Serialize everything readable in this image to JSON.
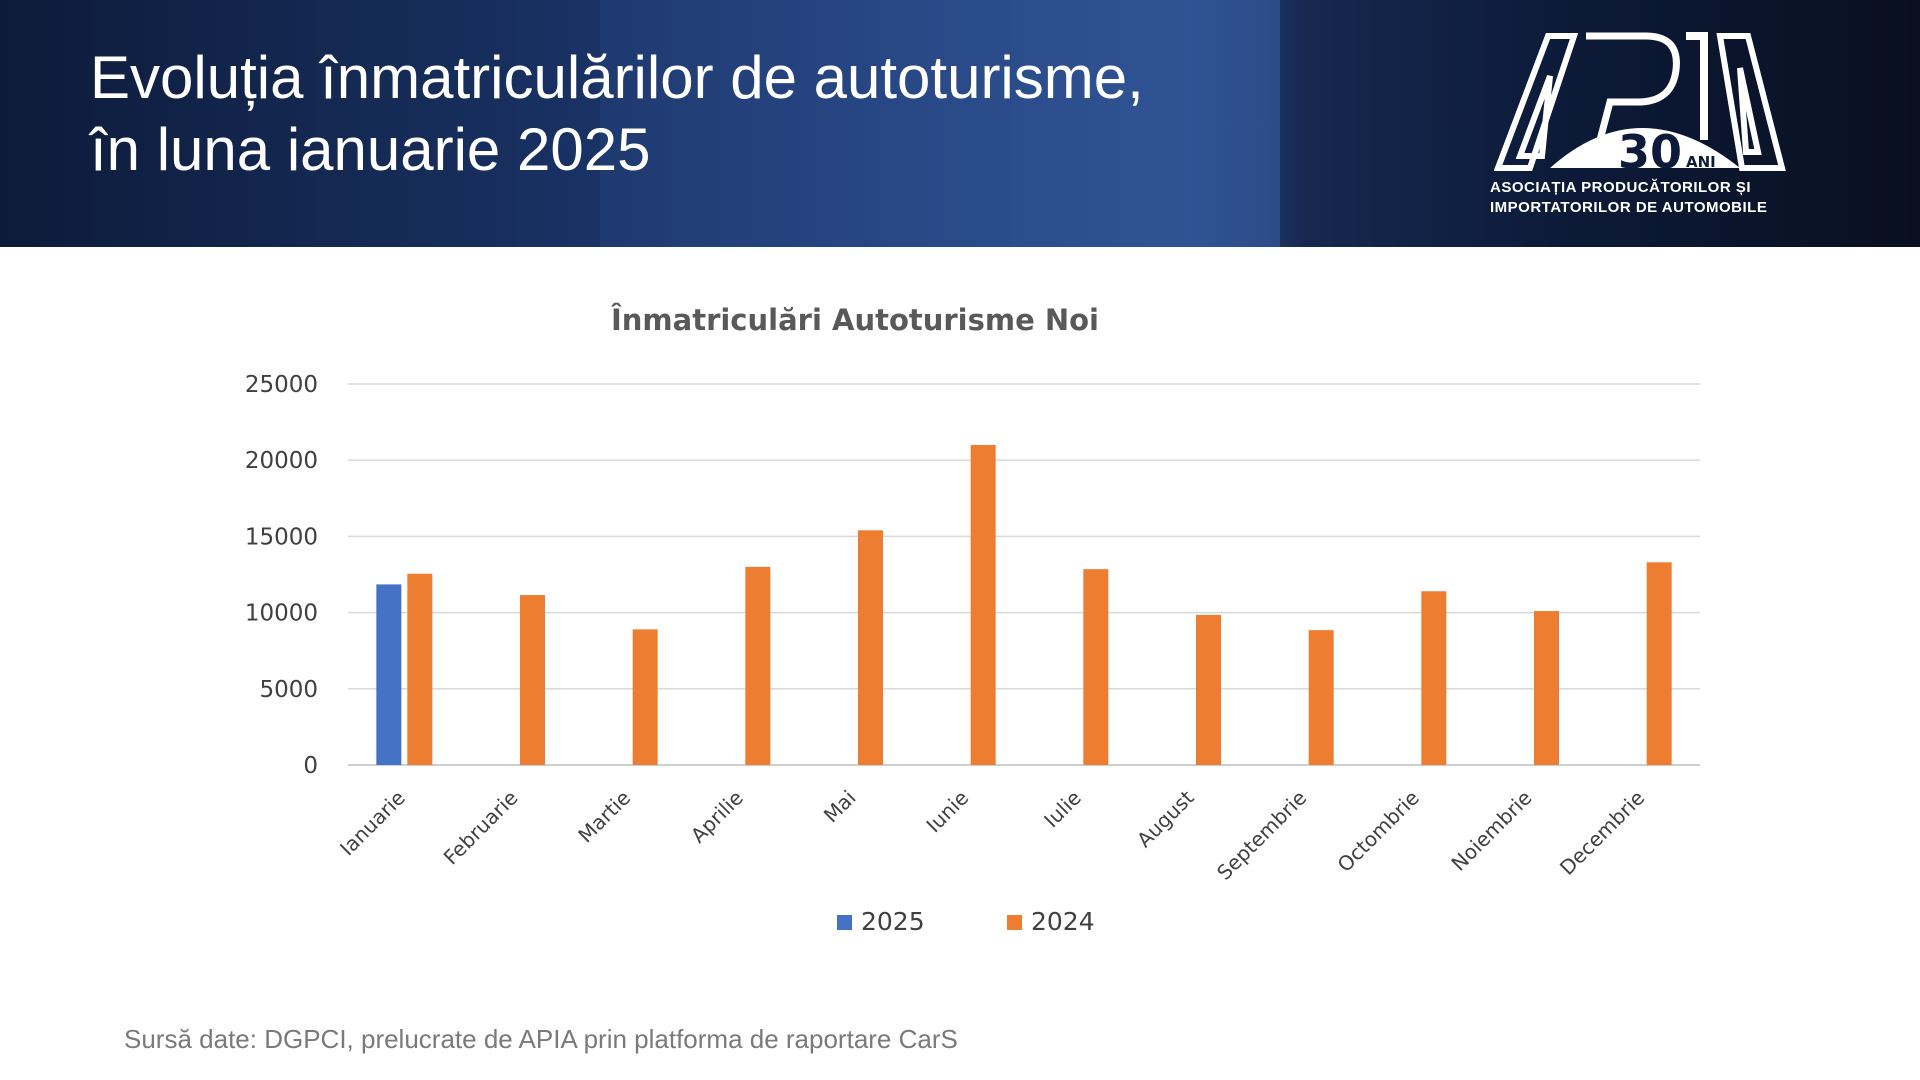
{
  "header": {
    "title_line1": "Evoluția înmatriculărilor de autoturisme,",
    "title_line2": "în luna ianuarie 2025"
  },
  "logo": {
    "wordmark": "APIA",
    "anniversary_number": "30",
    "anniversary_unit": "ANI",
    "subtitle_line1": "ASOCIAȚIA PRODUCĂTORILOR ȘI",
    "subtitle_line2": "IMPORTATORILOR DE AUTOMOBILE"
  },
  "chart_data": {
    "type": "bar",
    "title": "Înmatriculări Autoturisme Noi",
    "xlabel": "",
    "ylabel": "",
    "categories": [
      "Ianuarie",
      "Februarie",
      "Martie",
      "Aprilie",
      "Mai",
      "Iunie",
      "Iulie",
      "August",
      "Septembrie",
      "Octombrie",
      "Noiembrie",
      "Decembrie"
    ],
    "series": [
      {
        "name": "2025",
        "color": "#4472C4",
        "values": [
          11850,
          null,
          null,
          null,
          null,
          null,
          null,
          null,
          null,
          null,
          null,
          null
        ]
      },
      {
        "name": "2024",
        "color": "#ED7D31",
        "values": [
          12550,
          11150,
          8900,
          13000,
          15400,
          21000,
          12850,
          9850,
          8850,
          11400,
          10100,
          13300
        ]
      }
    ],
    "ylim": [
      0,
      25000
    ],
    "yticks": [
      0,
      5000,
      10000,
      15000,
      20000,
      25000
    ],
    "grid": true,
    "legend_position": "bottom"
  },
  "footer": {
    "source": "Sursă date: DGPCI, prelucrate de APIA prin platforma de raportare CarS"
  }
}
